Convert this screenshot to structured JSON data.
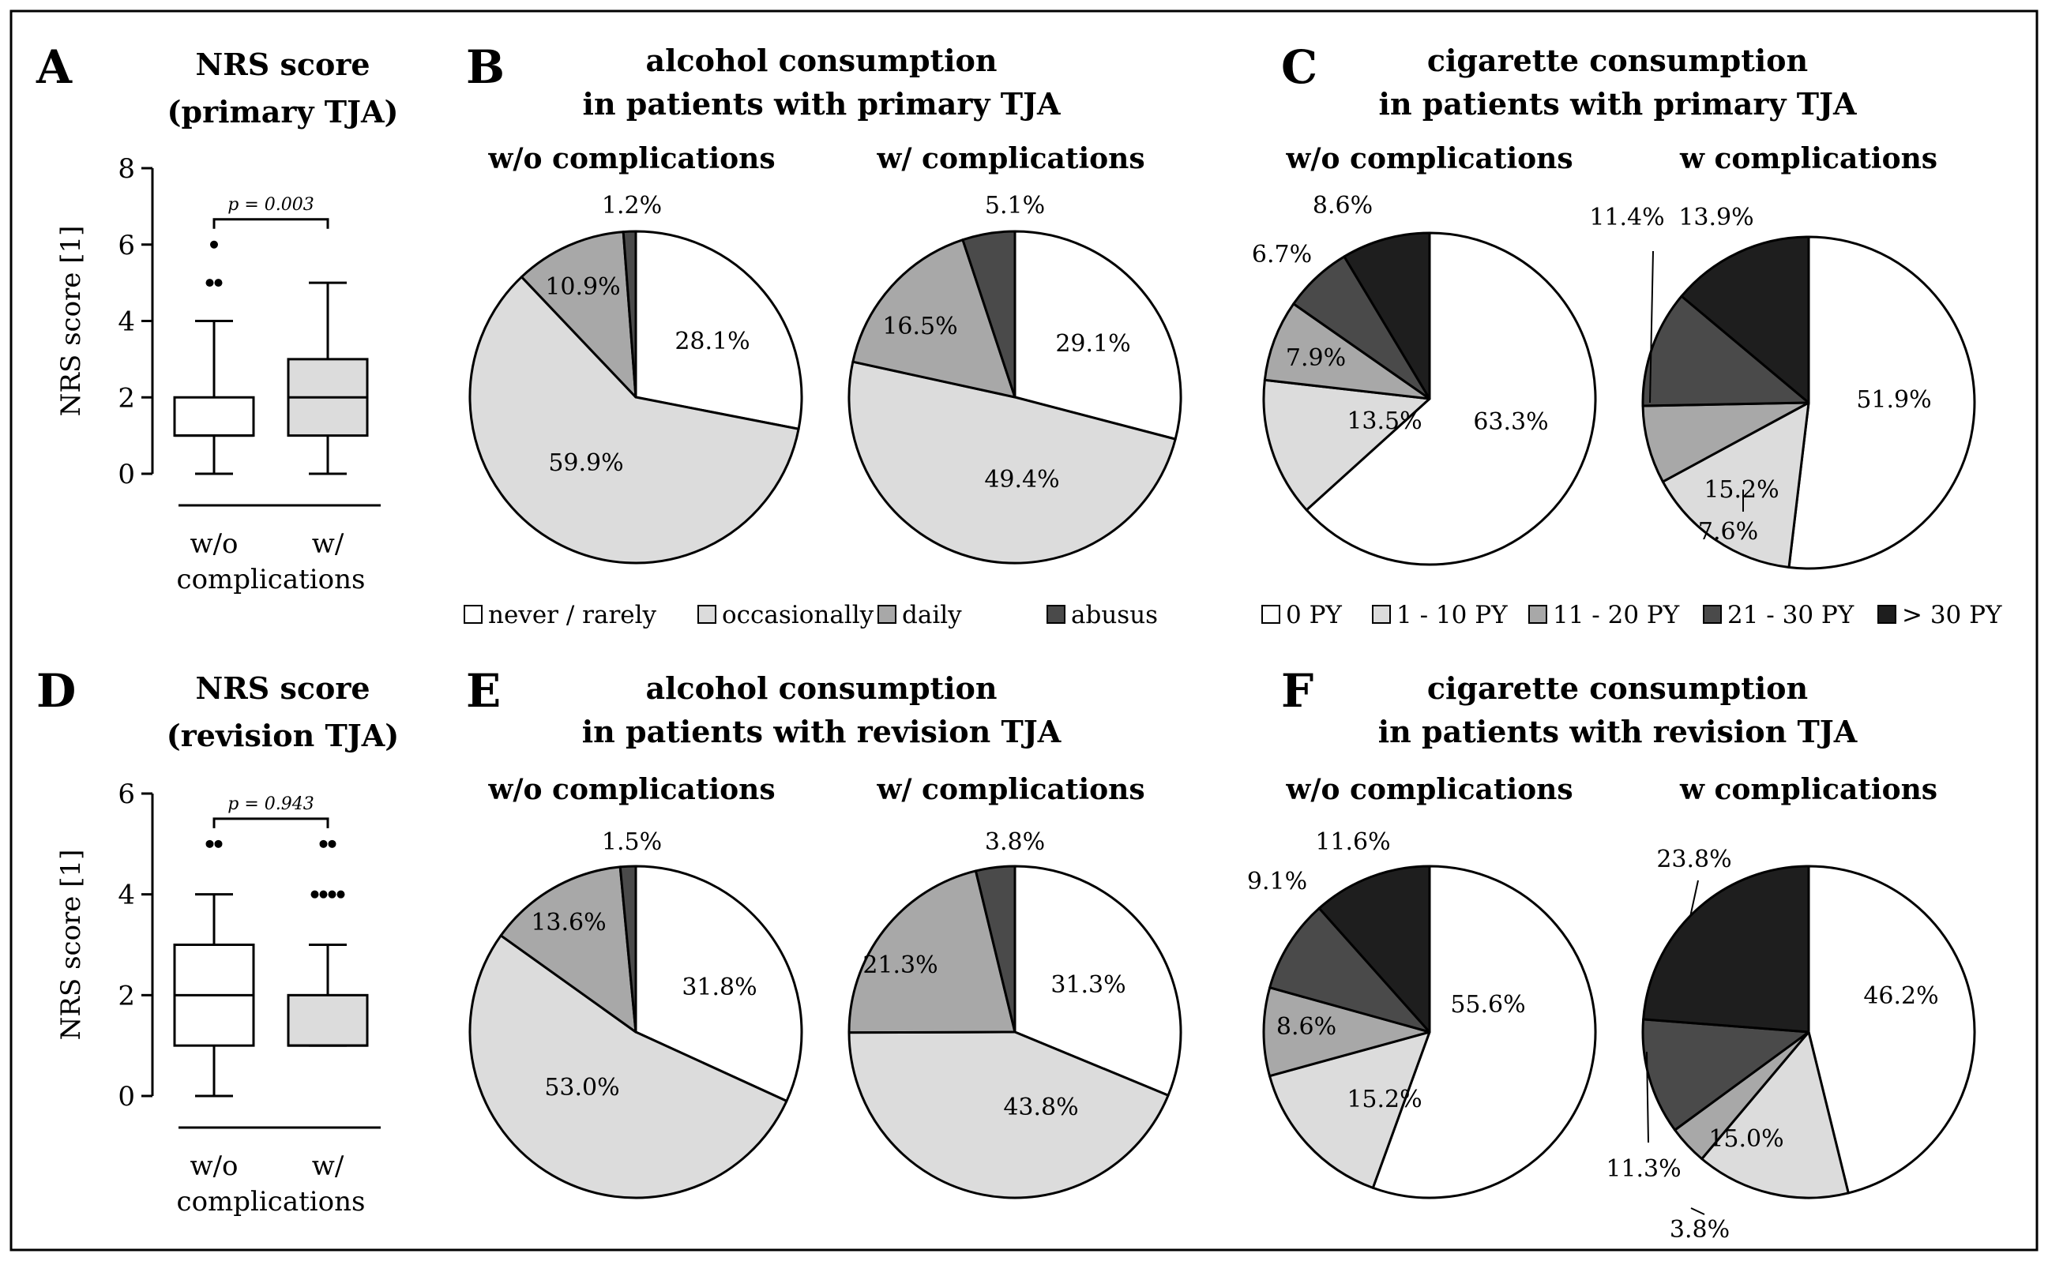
{
  "figure": {
    "panels": {
      "A": {
        "label": "A",
        "title1": "NRS score",
        "title2": "(primary TJA)"
      },
      "B": {
        "label": "B",
        "title1": "alcohol consumption",
        "title2": "in patients with primary TJA"
      },
      "C": {
        "label": "C",
        "title1": "cigarette consumption",
        "title2": "in patients with primary TJA"
      },
      "D": {
        "label": "D",
        "title1": "NRS score",
        "title2": "(revision TJA)"
      },
      "E": {
        "label": "E",
        "title1": "alcohol consumption",
        "title2": "in patients with revision TJA"
      },
      "F": {
        "label": "F",
        "title1": "cigarette consumption",
        "title2": "in patients with revision TJA"
      }
    },
    "legends": {
      "alcohol": [
        "never / rarely",
        "occasionally",
        "daily",
        "abusus"
      ],
      "cigarette": [
        "0 PY",
        "1 - 10 PY",
        "11 - 20 PY",
        "21 - 30 PY",
        "> 30 PY"
      ]
    },
    "colors": {
      "alcohol": [
        "#ffffff",
        "#dcdcdc",
        "#a8a8a8",
        "#4a4a4a"
      ],
      "cigarette": [
        "#ffffff",
        "#dcdcdc",
        "#a8a8a8",
        "#4a4a4a",
        "#1e1e1e"
      ]
    }
  },
  "chart_data": [
    {
      "type": "box",
      "panel": "A",
      "title": "NRS score (primary TJA)",
      "ylabel": "NRS score [1]",
      "ylim": [
        0,
        8
      ],
      "yticks": [
        0,
        2,
        4,
        6,
        8
      ],
      "xlabel_line1": "w/o",
      "xlabel_line1b": "w/",
      "xlabel_line2": "complications",
      "p_value": "p = 0.003",
      "groups": [
        {
          "name": "w/o complications",
          "whisker_low": 0,
          "q1": 1,
          "median": 1,
          "q3": 2,
          "whisker_high": 4,
          "outliers": [
            5,
            5,
            6
          ]
        },
        {
          "name": "w/ complications",
          "whisker_low": 0,
          "q1": 1,
          "median": 2,
          "q3": 3,
          "whisker_high": 5,
          "outliers": []
        }
      ]
    },
    {
      "type": "box",
      "panel": "D",
      "title": "NRS score (revision TJA)",
      "ylabel": "NRS score [1]",
      "ylim": [
        0,
        6
      ],
      "yticks": [
        0,
        2,
        4,
        6
      ],
      "xlabel_line1": "w/o",
      "xlabel_line1b": "w/",
      "xlabel_line2": "complications",
      "p_value": "p = 0.943",
      "groups": [
        {
          "name": "w/o complications",
          "whisker_low": 0,
          "q1": 1,
          "median": 2,
          "q3": 3,
          "whisker_high": 4,
          "outliers": [
            5,
            5
          ]
        },
        {
          "name": "w/ complications",
          "whisker_low": 1,
          "q1": 1,
          "median": 1,
          "q3": 2,
          "whisker_high": 3,
          "outliers": [
            4,
            4,
            4,
            4,
            5,
            5
          ]
        }
      ]
    },
    {
      "type": "pie",
      "panel": "B",
      "subtitle": "w/o complications",
      "categories": [
        "never / rarely",
        "occasionally",
        "daily",
        "abusus"
      ],
      "values": [
        28.1,
        59.9,
        10.9,
        1.2
      ],
      "labels": [
        "28.1%",
        "59.9%",
        "10.9%",
        "1.2%"
      ]
    },
    {
      "type": "pie",
      "panel": "B",
      "subtitle": "w/ complications",
      "categories": [
        "never / rarely",
        "occasionally",
        "daily",
        "abusus"
      ],
      "values": [
        29.1,
        49.4,
        16.5,
        5.1
      ],
      "labels": [
        "29.1%",
        "49.4%",
        "16.5%",
        "5.1%"
      ]
    },
    {
      "type": "pie",
      "panel": "C",
      "subtitle": "w/o complications",
      "categories": [
        "0 PY",
        "1 - 10 PY",
        "11 - 20 PY",
        "21 - 30 PY",
        "> 30 PY"
      ],
      "values": [
        63.3,
        13.5,
        7.9,
        6.7,
        8.6
      ],
      "labels": [
        "63.3%",
        "13.5%",
        "7.9%",
        "6.7%",
        "8.6%"
      ]
    },
    {
      "type": "pie",
      "panel": "C",
      "subtitle": "w complications",
      "categories": [
        "0 PY",
        "1 - 10 PY",
        "11 - 20 PY",
        "21 - 30 PY",
        "> 30 PY"
      ],
      "values": [
        51.9,
        15.2,
        7.6,
        11.4,
        13.9
      ],
      "labels": [
        "51.9%",
        "15.2%",
        "7.6%",
        "11.4%",
        "13.9%"
      ]
    },
    {
      "type": "pie",
      "panel": "E",
      "subtitle": "w/o complications",
      "categories": [
        "never / rarely",
        "occasionally",
        "daily",
        "abusus"
      ],
      "values": [
        31.8,
        53.0,
        13.6,
        1.5
      ],
      "labels": [
        "31.8%",
        "53.0%",
        "13.6%",
        "1.5%"
      ]
    },
    {
      "type": "pie",
      "panel": "E",
      "subtitle": "w/ complications",
      "categories": [
        "never / rarely",
        "occasionally",
        "daily",
        "abusus"
      ],
      "values": [
        31.3,
        43.8,
        21.3,
        3.8
      ],
      "labels": [
        "31.3%",
        "43.8%",
        "21.3%",
        "3.8%"
      ]
    },
    {
      "type": "pie",
      "panel": "F",
      "subtitle": "w/o complications",
      "categories": [
        "0 PY",
        "1 - 10 PY",
        "11 - 20 PY",
        "21 - 30 PY",
        "> 30 PY"
      ],
      "values": [
        55.6,
        15.2,
        8.6,
        9.1,
        11.6
      ],
      "labels": [
        "55.6%",
        "15.2%",
        "8.6%",
        "9.1%",
        "11.6%"
      ]
    },
    {
      "type": "pie",
      "panel": "F",
      "subtitle": "w complications",
      "categories": [
        "0 PY",
        "1 - 10 PY",
        "11 - 20 PY",
        "21 - 30 PY",
        "> 30 PY"
      ],
      "values": [
        46.2,
        15.0,
        3.8,
        11.3,
        23.8
      ],
      "labels": [
        "46.2%",
        "15.0%",
        "3.8%",
        "11.3%",
        "23.8%"
      ]
    }
  ]
}
